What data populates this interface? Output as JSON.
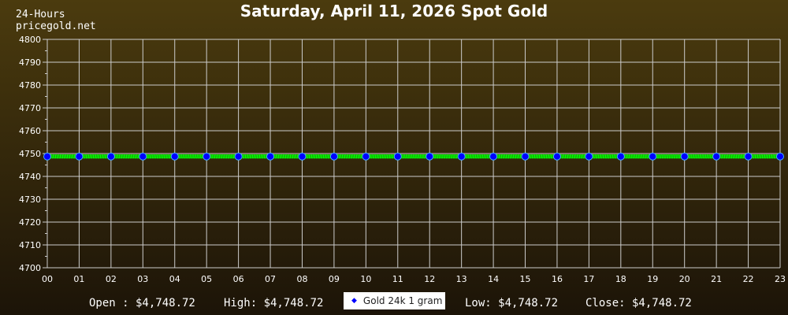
{
  "header": {
    "corner_line1": "24-Hours",
    "corner_line2": "pricegold.net"
  },
  "footer": {
    "open": "Open : $4,748.72",
    "high": "High: $4,748.72",
    "low": "Low: $4,748.72",
    "close": "Close: $4,748.72"
  },
  "chart_data": {
    "type": "line",
    "title": "Saturday, April 11, 2026 Spot Gold",
    "categories": [
      "00",
      "01",
      "02",
      "03",
      "04",
      "05",
      "06",
      "07",
      "08",
      "09",
      "10",
      "11",
      "12",
      "13",
      "14",
      "15",
      "16",
      "17",
      "18",
      "19",
      "20",
      "21",
      "22",
      "23"
    ],
    "series": [
      {
        "name": "Gold 24k 1 gram",
        "values": [
          4748.72,
          4748.72,
          4748.72,
          4748.72,
          4748.72,
          4748.72,
          4748.72,
          4748.72,
          4748.72,
          4748.72,
          4748.72,
          4748.72,
          4748.72,
          4748.72,
          4748.72,
          4748.72,
          4748.72,
          4748.72,
          4748.72,
          4748.72,
          4748.72,
          4748.72,
          4748.72,
          4748.72
        ]
      }
    ],
    "ylim": [
      4700,
      4800
    ],
    "yticks": [
      4700,
      4710,
      4720,
      4730,
      4740,
      4750,
      4760,
      4770,
      4780,
      4790,
      4800
    ],
    "grid": true,
    "legend": "bottom-center",
    "colors": {
      "line": "#00ff00",
      "marker": "#0000ff",
      "grid": "#cccccc"
    }
  }
}
